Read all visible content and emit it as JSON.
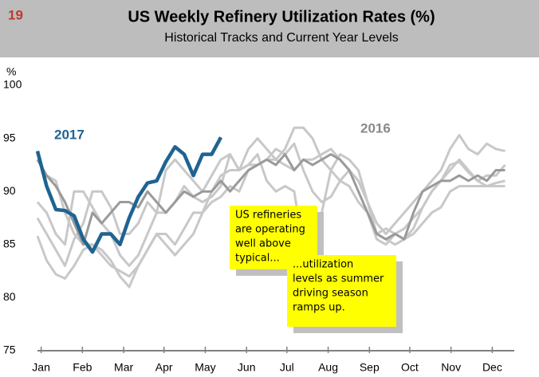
{
  "page_number": "19",
  "chart_data": {
    "type": "line",
    "title": "US Weekly Refinery Utilization Rates (%)",
    "subtitle": "Historical Tracks and Current Year Levels",
    "y_label": "%",
    "x": [
      0,
      1,
      2,
      3,
      4,
      5,
      6,
      7,
      8,
      9,
      10,
      11,
      12,
      13,
      14,
      15,
      16,
      17,
      18,
      19,
      20,
      21,
      22,
      23,
      24,
      25,
      26,
      27,
      28,
      29,
      30,
      31,
      32,
      33,
      34,
      35,
      36,
      37,
      38,
      39,
      40,
      41,
      42,
      43,
      44,
      45,
      46,
      47,
      48,
      49,
      50,
      51
    ],
    "xlim": [
      0,
      52
    ],
    "xticks": [
      {
        "value": 0.4,
        "label": "Jan"
      },
      {
        "value": 4.9,
        "label": "Feb"
      },
      {
        "value": 9.4,
        "label": "Mar"
      },
      {
        "value": 13.8,
        "label": "Apr"
      },
      {
        "value": 18.3,
        "label": "May"
      },
      {
        "value": 22.8,
        "label": "Jun"
      },
      {
        "value": 27.2,
        "label": "Jul"
      },
      {
        "value": 31.7,
        "label": "Aug"
      },
      {
        "value": 36.2,
        "label": "Sep"
      },
      {
        "value": 40.6,
        "label": "Oct"
      },
      {
        "value": 45.1,
        "label": "Nov"
      },
      {
        "value": 49.6,
        "label": "Dec"
      }
    ],
    "ylim": [
      75,
      100
    ],
    "yticks": [
      75,
      80,
      85,
      90,
      95,
      100
    ],
    "series": [
      {
        "color": "#c8c8c8",
        "values": [
          89,
          88,
          86,
          85,
          90,
          90,
          88.5,
          87,
          86,
          84,
          83,
          84,
          86,
          88,
          92,
          93,
          92,
          91,
          90,
          91.5,
          93,
          93.5,
          92,
          94,
          95,
          94,
          93,
          94,
          96,
          96,
          95,
          93,
          92,
          91,
          92,
          91,
          89,
          87,
          86,
          87,
          88,
          89,
          90,
          91,
          92,
          94,
          95.3,
          94,
          93.5,
          94.5,
          94,
          93.8
        ]
      },
      {
        "color": "#c8c8c8",
        "values": [
          85.8,
          83.5,
          82.2,
          81.8,
          83,
          84.5,
          85,
          84,
          83,
          82.5,
          82,
          83,
          84.5,
          86,
          85,
          84,
          85,
          86,
          88,
          89,
          89.5,
          90.5,
          90,
          92,
          92.5,
          93,
          93,
          92.5,
          92,
          93,
          93,
          93.5,
          94,
          93,
          92,
          91,
          89,
          86,
          85.5,
          85,
          85.5,
          86,
          87,
          88,
          88.5,
          90,
          90.5,
          90.5,
          90.5,
          90.5,
          90.8,
          91
        ]
      },
      {
        "color": "#c8c8c8",
        "values": [
          93,
          91.5,
          91,
          88,
          86,
          85,
          85,
          84.5,
          83.5,
          82,
          81,
          83,
          84.5,
          86,
          86,
          85,
          86.5,
          88,
          88,
          90,
          91.5,
          92,
          92,
          92.5,
          93.5,
          91,
          90,
          90.5,
          90,
          84.5,
          83,
          88,
          92,
          93.5,
          93,
          92,
          89,
          86,
          86.5,
          86,
          85.5,
          86.5,
          88.5,
          90,
          91,
          92.5,
          92.8,
          91.8,
          91,
          91.5,
          91.5,
          92.5
        ]
      },
      {
        "color": "#c8c8c8",
        "values": [
          87.5,
          86,
          84.5,
          83,
          85.5,
          87,
          90,
          90,
          88.5,
          86,
          86,
          87,
          89,
          88,
          88,
          89,
          90.5,
          89.5,
          89,
          89.5,
          90.5,
          93.5,
          92,
          92.5,
          92.5,
          93,
          94,
          93.5,
          94.5,
          92,
          90,
          89,
          89.5,
          91,
          90.5,
          89,
          88,
          85.5,
          85,
          86,
          86.5,
          87.5,
          88.5,
          90,
          91,
          92,
          93,
          92,
          91,
          90.5,
          90.5,
          90.5
        ]
      },
      {
        "name": "2016",
        "color": "#9a9a9a",
        "values": [
          93,
          91.5,
          90.5,
          89,
          87,
          85,
          88,
          87,
          88,
          89,
          89,
          88.5,
          90,
          89,
          88,
          89,
          90,
          89.5,
          90,
          90,
          91,
          90,
          91,
          92,
          92.5,
          93,
          92.5,
          93.5,
          92,
          93,
          92.5,
          93,
          93.5,
          93,
          92,
          90,
          88,
          86,
          85.5,
          86,
          85.5,
          88,
          90,
          90.5,
          91,
          91,
          91.5,
          91,
          91.5,
          91,
          92,
          92
        ]
      },
      {
        "name": "2017",
        "color": "#1f6391",
        "values": [
          93.8,
          90.5,
          88.3,
          88.2,
          87.7,
          85.5,
          84.3,
          86,
          86,
          85,
          87.5,
          89.5,
          90.8,
          91,
          92.8,
          94.2,
          93.5,
          91.5,
          93.5,
          93.5,
          95.1,
          null,
          null,
          null,
          null,
          null,
          null,
          null,
          null,
          null,
          null,
          null,
          null,
          null,
          null,
          null,
          null,
          null,
          null,
          null,
          null,
          null,
          null,
          null,
          null,
          null,
          null,
          null,
          null,
          null,
          null,
          null
        ]
      }
    ],
    "annotations": [
      {
        "lines": [
          "US refineries",
          "are operating",
          "well above",
          "typical..."
        ]
      },
      {
        "lines": [
          "...utilization",
          "levels as summer",
          "driving season",
          "ramps up."
        ]
      }
    ]
  }
}
